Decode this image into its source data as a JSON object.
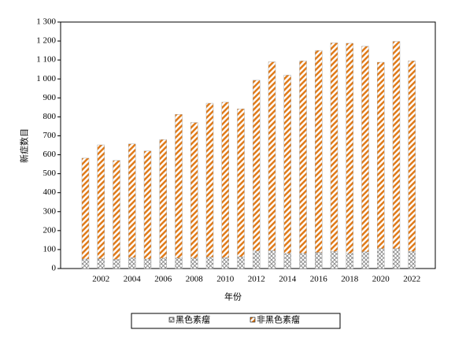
{
  "chart_data": {
    "type": "stacked-bar",
    "x_label": "年份",
    "y_label": "新症数目",
    "categories": [
      null,
      "2002",
      null,
      "2004",
      null,
      "2006",
      null,
      "2008",
      null,
      "2010",
      null,
      "2012",
      null,
      "2014",
      null,
      "2016",
      null,
      "2018",
      null,
      "2020",
      null,
      "2022"
    ],
    "series": [
      {
        "name": "黑色素瘤",
        "color": "#808080",
        "pattern": "crosshatch",
        "values": [
          50,
          52,
          48,
          58,
          50,
          55,
          55,
          55,
          60,
          58,
          62,
          92,
          95,
          80,
          80,
          85,
          90,
          80,
          88,
          105,
          105,
          90
        ]
      },
      {
        "name": "非黑色素瘤",
        "color": "#e07b1a",
        "pattern": "diagonal",
        "values": [
          532,
          600,
          522,
          599,
          570,
          625,
          758,
          715,
          812,
          819,
          780,
          901,
          995,
          940,
          1015,
          1065,
          1100,
          1108,
          1084,
          983,
          1093,
          1005
        ]
      }
    ],
    "ylim": [
      0,
      1300
    ],
    "yticks": [
      0,
      100,
      200,
      300,
      400,
      500,
      600,
      700,
      800,
      900,
      {
        "value": 1000,
        "label": "1 000"
      },
      {
        "value": 1100,
        "label": "1 100"
      },
      {
        "value": 1200,
        "label": "1 200"
      },
      {
        "value": 1300,
        "label": "1 300"
      }
    ],
    "legend": "bottom"
  }
}
